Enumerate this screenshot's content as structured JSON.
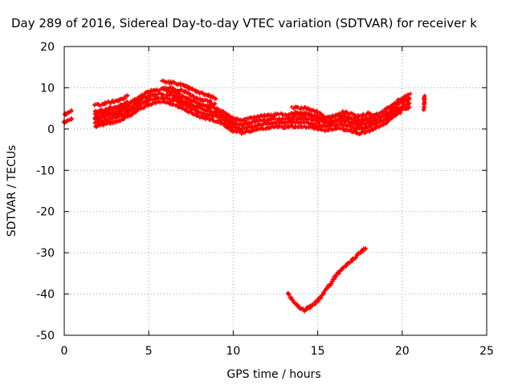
{
  "chart_data": {
    "type": "scatter",
    "title": "Day 289 of 2016, Sidereal Day-to-day VTEC variation (SDTVAR) for receiver k",
    "xlabel": "GPS time / hours",
    "ylabel": "SDTVAR / TECUs",
    "xlim": [
      0,
      25
    ],
    "ylim": [
      -50,
      20
    ],
    "xticks": [
      0,
      5,
      10,
      15,
      20,
      25
    ],
    "yticks": [
      -50,
      -40,
      -30,
      -20,
      -10,
      0,
      10,
      20
    ],
    "grid": true,
    "marker": "plus",
    "series_color": "#ff0000",
    "bands": [
      {
        "x": [
          0.0,
          0.2,
          0.5
        ],
        "y": [
          2.5,
          3.0,
          3.5
        ],
        "width": 2.0,
        "lines": 2
      },
      {
        "x": [
          1.8,
          2.5,
          3.2,
          3.8
        ],
        "y": [
          4.2,
          4.8,
          5.5,
          6.5
        ],
        "width": 3.0,
        "lines": 3
      },
      {
        "x": [
          1.8,
          2.5,
          3.2,
          4.0,
          4.5,
          5.0,
          5.5,
          6.0,
          6.5,
          7.0,
          7.5,
          8.0,
          8.5,
          9.0,
          9.5,
          10.0,
          10.5,
          11.0,
          11.5,
          12.0,
          12.5,
          13.0,
          13.5,
          14.0,
          14.5,
          15.0,
          15.5,
          16.0,
          16.5,
          17.0,
          17.5,
          18.0,
          18.5,
          19.0,
          19.5,
          20.0,
          20.5
        ],
        "y": [
          2.0,
          2.8,
          3.5,
          5.0,
          6.5,
          7.5,
          8.0,
          8.0,
          7.5,
          6.5,
          5.5,
          4.5,
          4.0,
          3.5,
          2.5,
          1.0,
          0.5,
          1.0,
          1.5,
          1.8,
          2.0,
          2.0,
          2.2,
          2.0,
          2.0,
          1.5,
          1.2,
          1.5,
          1.5,
          1.0,
          0.5,
          1.0,
          2.0,
          3.0,
          4.5,
          6.0,
          7.0
        ],
        "width": 3.0,
        "lines": 4
      },
      {
        "x": [
          5.8,
          6.5,
          7.0,
          7.5,
          8.0,
          8.5,
          9.0
        ],
        "y": [
          10.8,
          10.5,
          10.0,
          9.0,
          8.0,
          7.5,
          6.8
        ],
        "width": 1.5,
        "lines": 2
      },
      {
        "x": [
          13.5,
          14.0,
          14.5,
          15.0,
          15.5,
          16.0,
          16.5,
          17.0,
          17.5,
          18.0,
          18.5
        ],
        "y": [
          4.5,
          4.5,
          4.2,
          3.5,
          2.0,
          2.5,
          3.5,
          3.0,
          2.5,
          3.2,
          2.0
        ],
        "width": 1.2,
        "lines": 2
      },
      {
        "x": [
          21.3,
          21.3
        ],
        "y": [
          5.0,
          8.0
        ],
        "width": 1.0,
        "lines": 2
      },
      {
        "x": [
          13.2,
          13.6,
          14.0,
          14.2,
          14.6,
          15.0,
          15.5,
          16.0,
          16.5,
          17.0,
          17.5,
          17.9
        ],
        "y": [
          -39.5,
          -42.0,
          -43.5,
          -44.0,
          -43.0,
          -41.5,
          -39.0,
          -36.0,
          -33.5,
          -32.0,
          -30.0,
          -28.8
        ],
        "width": 0.8,
        "lines": 1
      }
    ]
  }
}
